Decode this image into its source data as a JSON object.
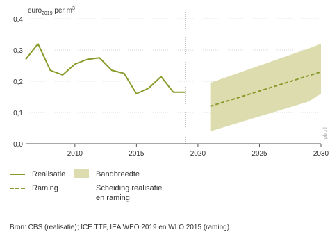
{
  "chart_data": {
    "type": "line",
    "ylabel": "euro2019 per m3",
    "ylabel_parts": {
      "base": "euro",
      "sub": "2019",
      "mid": " per m",
      "sup": "3"
    },
    "xlim": [
      2006,
      2030
    ],
    "ylim": [
      0,
      0.4
    ],
    "yticks": [
      0,
      0.1,
      0.2,
      0.3,
      0.4
    ],
    "ytick_labels": [
      "0,0",
      "0,1",
      "0,2",
      "0,3",
      "0,4"
    ],
    "xticks": [
      2010,
      2015,
      2020,
      2025,
      2030
    ],
    "xtick_labels": [
      "2010",
      "2015",
      "2020",
      "2025",
      "2030"
    ],
    "grid": "horizontal",
    "separator_x": 2019,
    "series": [
      {
        "name": "Realisatie",
        "style": "solid",
        "color": "#8a9a2a",
        "x": [
          2006,
          2007,
          2008,
          2009,
          2010,
          2011,
          2012,
          2013,
          2014,
          2015,
          2016,
          2017,
          2018,
          2019
        ],
        "y": [
          0.27,
          0.32,
          0.235,
          0.22,
          0.255,
          0.27,
          0.275,
          0.235,
          0.225,
          0.16,
          0.178,
          0.215,
          0.165,
          0.165
        ]
      },
      {
        "name": "Raming",
        "style": "dashed",
        "color": "#8a9a2a",
        "x": [
          2021,
          2030
        ],
        "y": [
          0.12,
          0.23
        ]
      }
    ],
    "band": {
      "name": "Bandbreedte",
      "color": "#dcdcae",
      "x": [
        2021,
        2029,
        2030
      ],
      "upper": [
        0.195,
        0.305,
        0.32
      ],
      "lower": [
        0.04,
        0.135,
        0.16
      ]
    }
  },
  "legend": {
    "realisatie": "Realisatie",
    "bandbreedte": "Bandbreedte",
    "raming": "Raming",
    "scheiding": "Scheiding realisatie\nen raming"
  },
  "source": "Bron: CBS (realisatie); ICE TTF, IEA WEO 2019 en WLO 2015 (raming)",
  "watermark": "pbl.nl"
}
